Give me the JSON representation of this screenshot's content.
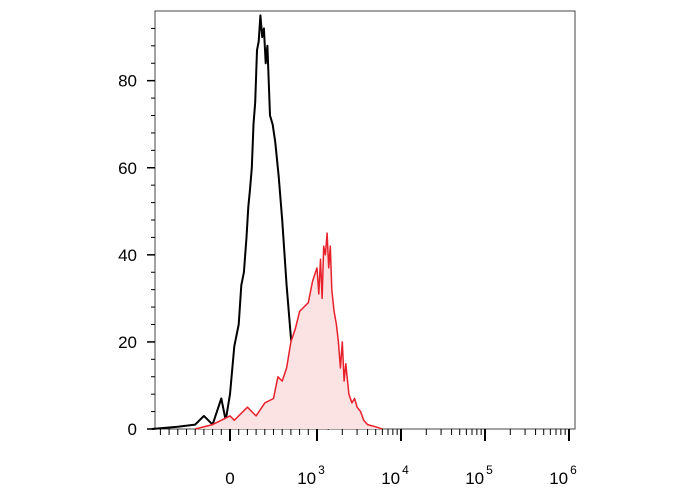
{
  "chart_data": {
    "type": "area",
    "title": "",
    "xlabel": "",
    "ylabel": "",
    "x_scale": "biexponential",
    "ylim": [
      0,
      96
    ],
    "grid": false,
    "y_ticks": [
      {
        "value": 0,
        "label": "0"
      },
      {
        "value": 20,
        "label": "20"
      },
      {
        "value": 40,
        "label": "40"
      },
      {
        "value": 60,
        "label": "60"
      },
      {
        "value": 80,
        "label": "80"
      }
    ],
    "x_ticks": [
      {
        "value": 0,
        "base": "0",
        "exp": ""
      },
      {
        "value": 1000,
        "base": "10",
        "exp": "3"
      },
      {
        "value": 10000,
        "base": "10",
        "exp": "4"
      },
      {
        "value": 100000,
        "base": "10",
        "exp": "5"
      },
      {
        "value": 1000000,
        "base": "10",
        "exp": "6"
      }
    ],
    "series": [
      {
        "color": "#000000",
        "fill": "none",
        "points": [
          [
            -900,
            0
          ],
          [
            -600,
            0.5
          ],
          [
            -400,
            1
          ],
          [
            -300,
            3
          ],
          [
            -200,
            1
          ],
          [
            -100,
            7
          ],
          [
            -50,
            2
          ],
          [
            0,
            8
          ],
          [
            50,
            19
          ],
          [
            100,
            24
          ],
          [
            130,
            33
          ],
          [
            160,
            36
          ],
          [
            190,
            44
          ],
          [
            210,
            51
          ],
          [
            230,
            55
          ],
          [
            250,
            60
          ],
          [
            270,
            70
          ],
          [
            290,
            75
          ],
          [
            310,
            87
          ],
          [
            330,
            89
          ],
          [
            350,
            95
          ],
          [
            370,
            90
          ],
          [
            390,
            92
          ],
          [
            410,
            84
          ],
          [
            430,
            88
          ],
          [
            460,
            72
          ],
          [
            490,
            70
          ],
          [
            520,
            66
          ],
          [
            560,
            58
          ],
          [
            600,
            48
          ],
          [
            650,
            33
          ],
          [
            700,
            21
          ],
          [
            750,
            13
          ],
          [
            800,
            7
          ],
          [
            850,
            5
          ],
          [
            900,
            3
          ],
          [
            950,
            4
          ],
          [
            1000,
            2
          ],
          [
            1100,
            1
          ],
          [
            1200,
            0.5
          ],
          [
            1400,
            0
          ]
        ]
      },
      {
        "color": "#e8202a",
        "fill": "#fbe3e3",
        "points": [
          [
            -400,
            0
          ],
          [
            -200,
            1
          ],
          [
            0,
            3
          ],
          [
            50,
            2
          ],
          [
            100,
            3
          ],
          [
            200,
            5
          ],
          [
            300,
            3
          ],
          [
            400,
            6
          ],
          [
            500,
            7
          ],
          [
            550,
            12
          ],
          [
            600,
            11
          ],
          [
            650,
            14
          ],
          [
            700,
            20
          ],
          [
            750,
            23
          ],
          [
            800,
            27
          ],
          [
            850,
            28
          ],
          [
            900,
            29
          ],
          [
            950,
            34
          ],
          [
            1000,
            37
          ],
          [
            1050,
            31
          ],
          [
            1100,
            39
          ],
          [
            1150,
            30
          ],
          [
            1200,
            42
          ],
          [
            1260,
            40
          ],
          [
            1320,
            45
          ],
          [
            1380,
            37
          ],
          [
            1440,
            42
          ],
          [
            1500,
            32
          ],
          [
            1600,
            27
          ],
          [
            1700,
            24
          ],
          [
            1800,
            20
          ],
          [
            1900,
            14
          ],
          [
            2000,
            20
          ],
          [
            2100,
            11
          ],
          [
            2200,
            15
          ],
          [
            2400,
            8
          ],
          [
            2600,
            6
          ],
          [
            2800,
            7
          ],
          [
            3000,
            5
          ],
          [
            3300,
            4
          ],
          [
            3600,
            2
          ],
          [
            4000,
            1
          ],
          [
            5000,
            0.5
          ],
          [
            6000,
            0
          ]
        ]
      }
    ]
  }
}
